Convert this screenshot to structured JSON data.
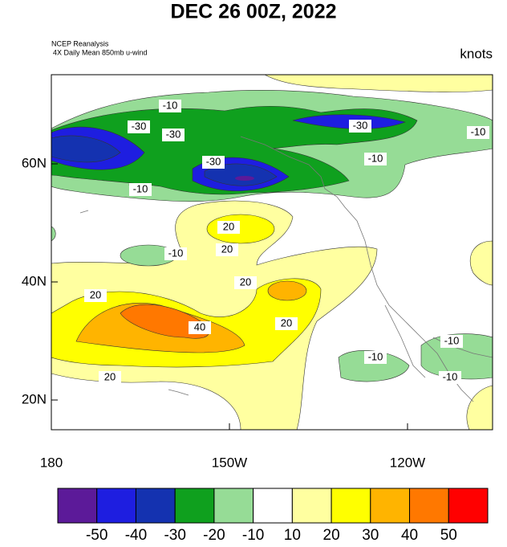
{
  "title": "DEC 26 00Z, 2022",
  "source": "NCEP Reanalysis",
  "description": "4X Daily Mean 850mb u-wind",
  "units": "knots",
  "lon_ticks": [
    "180",
    "150W",
    "120W"
  ],
  "lat_ticks": [
    "60N",
    "40N",
    "20N"
  ],
  "contour_labels": [
    -10,
    -30,
    -30,
    -30,
    -10,
    -10,
    -30,
    -10,
    20,
    -10,
    20,
    20,
    20,
    40,
    20,
    -10,
    -10,
    -10,
    20
  ],
  "colorbar": {
    "colors": [
      "#5c1a99",
      "#1e1ee0",
      "#1432b0",
      "#0fa01e",
      "#96dc96",
      "#ffffff",
      "#ffffa0",
      "#ffff00",
      "#ffb400",
      "#ff7800",
      "#ff0000"
    ],
    "labels": [
      -50,
      -40,
      -30,
      -20,
      -10,
      10,
      20,
      30,
      40,
      50
    ]
  }
}
